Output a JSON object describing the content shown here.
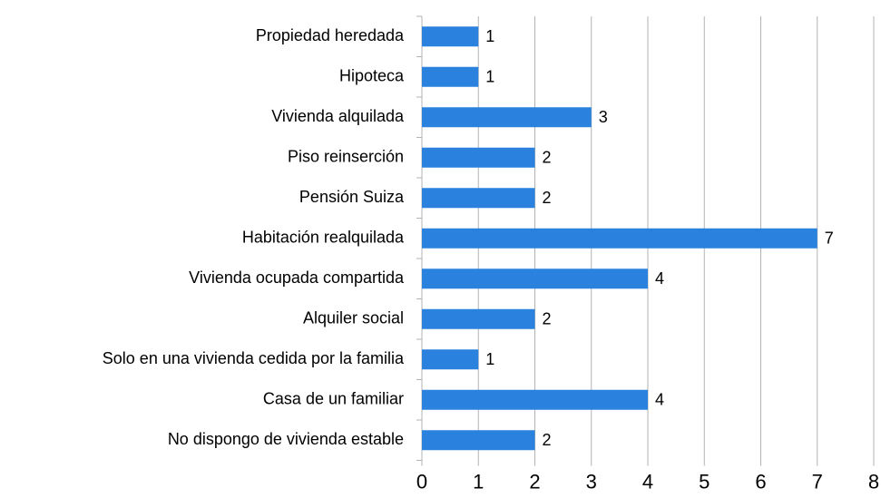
{
  "chart_data": {
    "type": "barh",
    "categories": [
      "Propiedad heredada",
      "Hipoteca",
      "Vivienda alquilada",
      "Piso reinserción",
      "Pensión Suiza",
      "Habitación realquilada",
      "Vivienda ocupada compartida",
      "Alquiler social",
      "Solo en una vivienda cedida por la familia",
      "Casa de un familiar",
      "No dispongo de vivienda estable"
    ],
    "values": [
      1,
      1,
      3,
      2,
      2,
      7,
      4,
      2,
      1,
      4,
      2
    ],
    "color": "#2a82de",
    "xlim": [
      0,
      8
    ],
    "xticks": [
      0,
      1,
      2,
      3,
      4,
      5,
      6,
      7,
      8
    ],
    "grid": true
  }
}
